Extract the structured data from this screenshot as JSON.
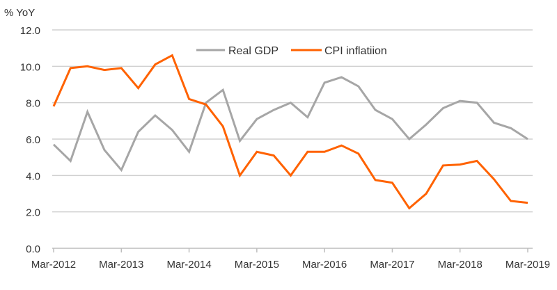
{
  "chart_data": {
    "type": "line",
    "title": "",
    "ylabel": "% YoY",
    "xlabel": "",
    "ylim": [
      0,
      12
    ],
    "yticks": [
      "0.0",
      "2.0",
      "4.0",
      "6.0",
      "8.0",
      "10.0",
      "12.0"
    ],
    "xtick_labels": [
      "Mar-2012",
      "Mar-2013",
      "Mar-2014",
      "Mar-2015",
      "Mar-2016",
      "Mar-2017",
      "Mar-2018",
      "Mar-2019"
    ],
    "grid": true,
    "legend": "top-center",
    "x": [
      "Mar-2012",
      "Jun-2012",
      "Sep-2012",
      "Dec-2012",
      "Mar-2013",
      "Jun-2013",
      "Sep-2013",
      "Dec-2013",
      "Mar-2014",
      "Jun-2014",
      "Sep-2014",
      "Dec-2014",
      "Mar-2015",
      "Jun-2015",
      "Sep-2015",
      "Dec-2015",
      "Mar-2016",
      "Jun-2016",
      "Sep-2016",
      "Dec-2016",
      "Mar-2017",
      "Jun-2017",
      "Sep-2017",
      "Dec-2017",
      "Mar-2018",
      "Jun-2018",
      "Sep-2018",
      "Dec-2018",
      "Mar-2019"
    ],
    "series": [
      {
        "name": "Real GDP",
        "color": "#a6a6a6",
        "values": [
          5.7,
          4.8,
          7.5,
          5.4,
          4.3,
          6.4,
          7.3,
          6.5,
          5.3,
          8.0,
          8.7,
          5.9,
          7.1,
          7.6,
          8.0,
          7.2,
          9.1,
          9.4,
          8.9,
          7.6,
          7.1,
          6.0,
          6.8,
          7.7,
          8.1,
          8.0,
          6.9,
          6.6,
          6.0
        ]
      },
      {
        "name": "CPI inflatiion",
        "color": "#ff6200",
        "values": [
          7.8,
          9.9,
          10.0,
          9.8,
          9.9,
          8.8,
          10.1,
          10.6,
          8.2,
          7.9,
          6.7,
          4.0,
          5.3,
          5.1,
          4.0,
          5.3,
          5.3,
          5.65,
          5.2,
          3.75,
          3.6,
          2.2,
          3.0,
          4.55,
          4.6,
          4.8,
          3.8,
          2.6,
          2.5
        ]
      }
    ]
  }
}
